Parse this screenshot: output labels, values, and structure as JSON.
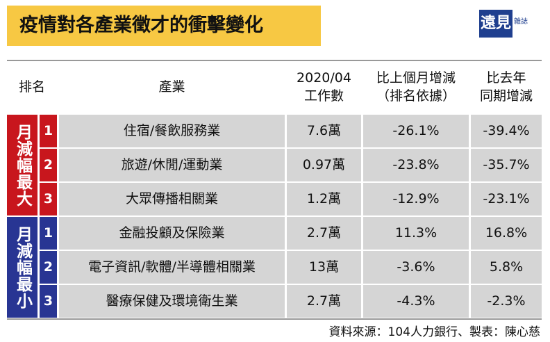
{
  "header": {
    "title": "疫情對各產業徵才的衝擊變化",
    "logo": "遠見",
    "logo_sub": "雜誌"
  },
  "table": {
    "columns": [
      [
        "排名"
      ],
      [
        "產業"
      ],
      [
        "2020/04",
        "工作數"
      ],
      [
        "比上個月增減",
        "（排名依據）"
      ],
      [
        "比去年",
        "同期增減"
      ]
    ],
    "groups": [
      {
        "label": "月減幅最大",
        "rows": [
          [
            "1",
            "住宿/餐飲服務業",
            "7.6萬",
            "-26.1%",
            "-39.4%"
          ],
          [
            "2",
            "旅遊/休閒/運動業",
            "0.97萬",
            "-23.8%",
            "-35.7%"
          ],
          [
            "3",
            "大眾傳播相關業",
            "1.2萬",
            "-12.9%",
            "-23.1%"
          ]
        ]
      },
      {
        "label": "月減幅最小",
        "rows": [
          [
            "1",
            "金融投顧及保險業",
            "2.7萬",
            "11.3%",
            "16.8%"
          ],
          [
            "2",
            "電子資訊/軟體/半導體相關業",
            "13萬",
            "-3.6%",
            "5.8%"
          ],
          [
            "3",
            "醫療保健及環境衛生業",
            "2.7萬",
            "-4.3%",
            "-2.3%"
          ]
        ]
      }
    ]
  },
  "footer": {
    "source": "資料來源：104人力銀行、製表：陳心慈"
  }
}
